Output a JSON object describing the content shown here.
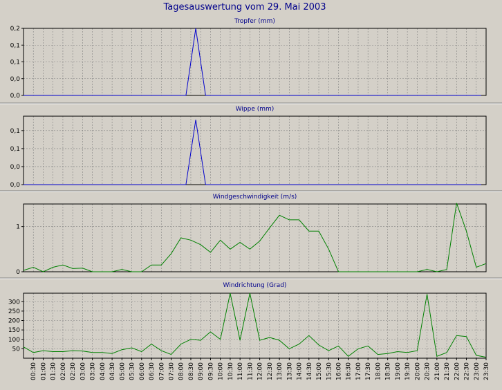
{
  "page_title": "Tagesauswertung vom 29. Mai 2003",
  "x_tick_labels": [
    "00:30",
    "01:00",
    "01:30",
    "02:00",
    "02:30",
    "03:00",
    "03:30",
    "04:00",
    "04:30",
    "05:00",
    "05:30",
    "06:00",
    "06:30",
    "07:00",
    "07:30",
    "08:00",
    "08:30",
    "09:00",
    "09:30",
    "10:00",
    "10:30",
    "11:00",
    "11:30",
    "12:00",
    "12:30",
    "13:00",
    "13:30",
    "14:00",
    "14:30",
    "15:00",
    "15:30",
    "16:00",
    "16:30",
    "17:00",
    "17:30",
    "18:00",
    "18:30",
    "19:00",
    "19:30",
    "20:00",
    "20:30",
    "21:00",
    "21:30",
    "22:00",
    "22:30",
    "23:00",
    "23:30"
  ],
  "colors": {
    "background": "#d4d0c8",
    "plot_bg": "#d4d0c8",
    "grid": "#808080",
    "title": "#00008b",
    "rain_line": "#0000cc",
    "wind_line": "#008000"
  },
  "chart_data": [
    {
      "type": "line",
      "title": "Tropfer (mm)",
      "ytick_labels": [
        "0,2",
        "0,1",
        "0,1",
        "0,0",
        "0,0"
      ],
      "ytick_values": [
        0.2,
        0.15,
        0.1,
        0.05,
        0.0
      ],
      "ylim": [
        0,
        0.2
      ],
      "grid": true,
      "series": [
        {
          "color": "#0000cc",
          "x": [
            0,
            16.5,
            17.5,
            18.5,
            46.5
          ],
          "y": [
            0,
            0,
            0.2,
            0,
            0
          ]
        }
      ]
    },
    {
      "type": "line",
      "title": "Wippe (mm)",
      "ytick_labels": [
        "0,1",
        "0,1",
        "0,0",
        "0,0"
      ],
      "ytick_values": [
        0.15,
        0.1,
        0.05,
        0.0
      ],
      "ylim": [
        0,
        0.19
      ],
      "grid": true,
      "series": [
        {
          "color": "#0000cc",
          "x": [
            0,
            16.5,
            17.5,
            18.5,
            46.5
          ],
          "y": [
            0,
            0,
            0.18,
            0,
            0
          ]
        }
      ]
    },
    {
      "type": "line",
      "title": "Windgeschwindigkeit (m/s)",
      "ytick_labels": [
        "1",
        "0"
      ],
      "ytick_values": [
        1,
        0
      ],
      "ylim": [
        0,
        1.5
      ],
      "grid": true,
      "series": [
        {
          "color": "#008000",
          "x": [
            0,
            1,
            2,
            3,
            4,
            5,
            6,
            7,
            8,
            9,
            10,
            11,
            12,
            13,
            14,
            15,
            16,
            17,
            18,
            19,
            20,
            21,
            22,
            23,
            24,
            25,
            26,
            27,
            28,
            29,
            30,
            31,
            32,
            33,
            34,
            35,
            36,
            37,
            38,
            39,
            40,
            41,
            42,
            43,
            44,
            45,
            46,
            47
          ],
          "y": [
            0.03,
            0.1,
            0.0,
            0.1,
            0.15,
            0.07,
            0.08,
            0.0,
            0.0,
            0.0,
            0.05,
            0.0,
            0.0,
            0.15,
            0.15,
            0.4,
            0.75,
            0.7,
            0.6,
            0.43,
            0.7,
            0.5,
            0.65,
            0.5,
            0.68,
            0.97,
            1.25,
            1.15,
            1.15,
            0.9,
            0.9,
            0.5,
            0.0,
            0.0,
            0.0,
            0.0,
            0.0,
            0.0,
            0.0,
            0.0,
            0.0,
            0.05,
            0.0,
            0.05,
            1.52,
            0.9,
            0.1,
            0.18
          ]
        }
      ]
    },
    {
      "type": "line",
      "title": "Windrichtung (Grad)",
      "ytick_labels": [
        "300",
        "250",
        "200",
        "150",
        "100",
        "50"
      ],
      "ytick_values": [
        300,
        250,
        200,
        150,
        100,
        50
      ],
      "ylim": [
        0,
        345
      ],
      "grid": true,
      "series": [
        {
          "color": "#008000",
          "x": [
            0,
            1,
            2,
            3,
            4,
            5,
            6,
            7,
            8,
            9,
            10,
            11,
            12,
            13,
            14,
            15,
            16,
            17,
            18,
            19,
            20,
            21,
            22,
            23,
            24,
            25,
            26,
            27,
            28,
            29,
            30,
            31,
            32,
            33,
            34,
            35,
            36,
            37,
            38,
            39,
            40,
            41,
            42,
            43,
            44,
            45,
            46,
            47
          ],
          "y": [
            60,
            30,
            40,
            35,
            35,
            40,
            38,
            30,
            30,
            25,
            45,
            55,
            35,
            75,
            40,
            20,
            75,
            100,
            95,
            140,
            100,
            345,
            95,
            345,
            95,
            110,
            95,
            50,
            75,
            120,
            70,
            40,
            65,
            10,
            50,
            65,
            20,
            25,
            35,
            30,
            40,
            340,
            10,
            30,
            120,
            115,
            15,
            5
          ]
        }
      ]
    }
  ]
}
